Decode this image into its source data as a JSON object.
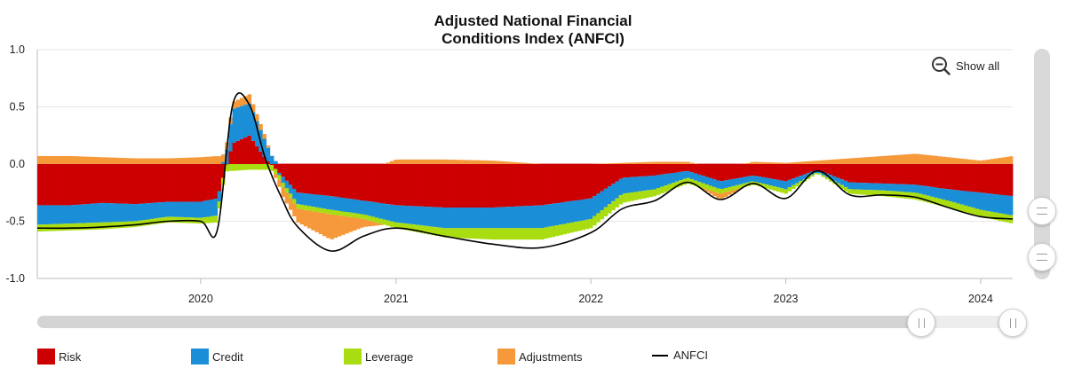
{
  "chart_data": {
    "type": "bar",
    "title": [
      "Adjusted National Financial",
      "Conditions Index (ANFCI)"
    ],
    "xlabel": "",
    "ylabel": "",
    "ylim": [
      -1.0,
      1.0
    ],
    "yticks": [
      "1.0",
      "0.5",
      "0.0",
      "-0.5",
      "-1.0"
    ],
    "xticks": [
      "2020",
      "2021",
      "2022",
      "2023",
      "2024"
    ],
    "xrange": [
      "2019-03-01",
      "2024-03-01"
    ],
    "grid": true,
    "legend_position": "bottom",
    "stacked": true,
    "x": [
      "2019-03",
      "2019-05",
      "2019-07",
      "2019-09",
      "2019-11",
      "2020-01",
      "2020-02",
      "2020-03",
      "2020-04",
      "2020-05",
      "2020-06",
      "2020-07",
      "2020-09",
      "2020-11",
      "2021-01",
      "2021-04",
      "2021-07",
      "2021-10",
      "2022-01",
      "2022-03",
      "2022-05",
      "2022-07",
      "2022-09",
      "2022-11",
      "2023-01",
      "2023-03",
      "2023-05",
      "2023-07",
      "2023-09",
      "2023-11",
      "2024-01",
      "2024-03"
    ],
    "series": [
      {
        "name": "Risk",
        "color": "#cc0000",
        "values": [
          -0.36,
          -0.36,
          -0.34,
          -0.35,
          -0.33,
          -0.33,
          -0.3,
          0.18,
          0.25,
          0.05,
          -0.1,
          -0.25,
          -0.28,
          -0.32,
          -0.36,
          -0.38,
          -0.38,
          -0.36,
          -0.3,
          -0.12,
          -0.1,
          -0.06,
          -0.15,
          -0.1,
          -0.15,
          -0.05,
          -0.16,
          -0.17,
          -0.18,
          -0.22,
          -0.25,
          -0.28
        ]
      },
      {
        "name": "Credit",
        "color": "#1a8fd8",
        "values": [
          -0.17,
          -0.16,
          -0.17,
          -0.15,
          -0.13,
          -0.14,
          -0.15,
          0.3,
          0.28,
          0.15,
          -0.05,
          -0.1,
          -0.12,
          -0.12,
          -0.15,
          -0.18,
          -0.18,
          -0.2,
          -0.18,
          -0.14,
          -0.12,
          -0.06,
          -0.07,
          -0.05,
          -0.07,
          -0.02,
          -0.06,
          -0.06,
          -0.07,
          -0.1,
          -0.15,
          -0.17
        ]
      },
      {
        "name": "Leverage",
        "color": "#aadd11",
        "values": [
          -0.06,
          -0.06,
          -0.06,
          -0.05,
          -0.05,
          -0.05,
          -0.06,
          -0.06,
          -0.05,
          -0.05,
          -0.04,
          -0.04,
          -0.04,
          -0.04,
          -0.05,
          -0.08,
          -0.1,
          -0.1,
          -0.08,
          -0.08,
          -0.06,
          -0.05,
          -0.04,
          -0.03,
          -0.04,
          -0.01,
          -0.04,
          -0.05,
          -0.06,
          -0.06,
          -0.06,
          -0.07
        ]
      },
      {
        "name": "Adjustments",
        "color": "#f5993a",
        "values": [
          0.07,
          0.07,
          0.06,
          0.05,
          0.05,
          0.06,
          0.07,
          0.06,
          0.08,
          0.04,
          -0.08,
          -0.12,
          -0.22,
          -0.07,
          0.04,
          0.04,
          0.03,
          0.0,
          0.0,
          0.01,
          0.02,
          0.02,
          -0.05,
          0.02,
          0.01,
          0.03,
          0.05,
          0.07,
          0.09,
          0.06,
          0.03,
          0.07
        ]
      },
      {
        "name": "ANFCI",
        "color": "#000000",
        "type": "line",
        "values": [
          -0.56,
          -0.56,
          -0.55,
          -0.53,
          -0.5,
          -0.5,
          -0.58,
          0.52,
          0.52,
          0.05,
          -0.3,
          -0.55,
          -0.76,
          -0.63,
          -0.56,
          -0.63,
          -0.7,
          -0.73,
          -0.6,
          -0.39,
          -0.32,
          -0.16,
          -0.31,
          -0.17,
          -0.3,
          -0.06,
          -0.27,
          -0.27,
          -0.29,
          -0.38,
          -0.46,
          -0.48
        ]
      }
    ]
  },
  "controls": {
    "show_all_label": "Show all"
  }
}
